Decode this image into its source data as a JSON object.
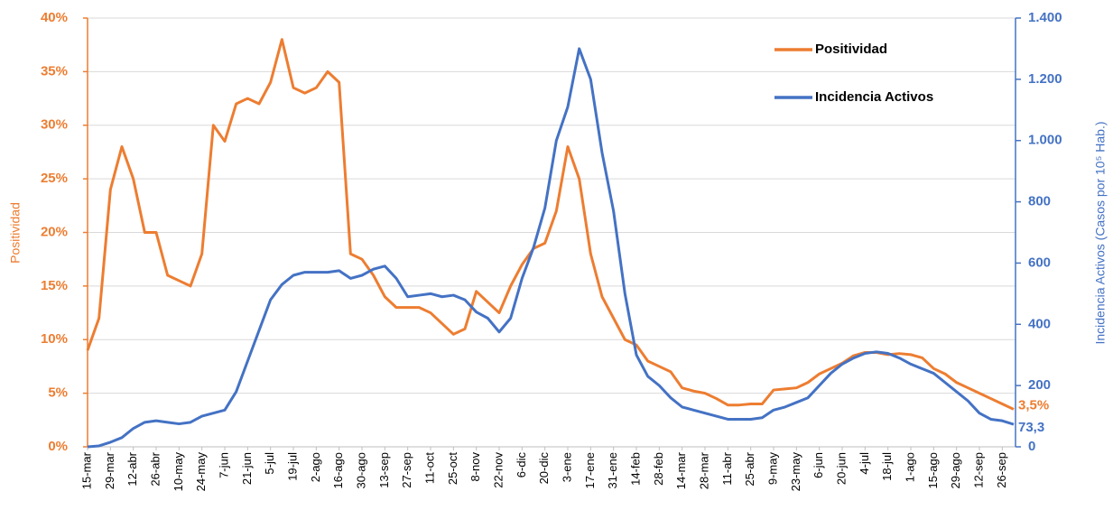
{
  "chart_data": {
    "type": "line",
    "categories": [
      "15-mar",
      null,
      "29-mar",
      null,
      "12-abr",
      null,
      "26-abr",
      null,
      "10-may",
      null,
      "24-may",
      null,
      "7-jun",
      null,
      "21-jun",
      null,
      "5-jul",
      null,
      "19-jul",
      null,
      "2-ago",
      null,
      "16-ago",
      null,
      "30-ago",
      null,
      "13-sep",
      null,
      "27-sep",
      null,
      "11-oct",
      null,
      "25-oct",
      null,
      "8-nov",
      null,
      "22-nov",
      null,
      "6-dic",
      null,
      "20-dic",
      null,
      "3-ene",
      null,
      "17-ene",
      null,
      "31-ene",
      null,
      "14-feb",
      null,
      "28-feb",
      null,
      "14-mar",
      null,
      "28-mar",
      null,
      "11-abr",
      null,
      "25-abr",
      null,
      "9-may",
      null,
      "23-may",
      null,
      "6-jun",
      null,
      "20-jun",
      null,
      "4-jul",
      null,
      "18-jul",
      null,
      "1-ago",
      null,
      "15-ago",
      null,
      "29-ago",
      null,
      "12-sep",
      null,
      "26-sep",
      null
    ],
    "series": [
      {
        "name": "Positividad",
        "color": "#ED7D31",
        "values": [
          9,
          12,
          24,
          28,
          25,
          20,
          20,
          16,
          15.5,
          15,
          18,
          30,
          28.5,
          32,
          32.5,
          32,
          34,
          38,
          33.5,
          33,
          33.5,
          35,
          34,
          18,
          17.5,
          16,
          14,
          13,
          13,
          13,
          12.5,
          11.5,
          10.5,
          11,
          14.5,
          13.5,
          12.5,
          15,
          17,
          18.5,
          19,
          22,
          28,
          25,
          18,
          14,
          12,
          10,
          9.5,
          8,
          7.5,
          7,
          5.5,
          5.2,
          5,
          4.5,
          3.9,
          3.9,
          4,
          4,
          5.3,
          5.4,
          5.5,
          6,
          6.8,
          7.3,
          7.8,
          8.5,
          8.8,
          8.8,
          8.6,
          8.7,
          8.6,
          8.3,
          7.3,
          6.8,
          6,
          5.5,
          5,
          4.5,
          4,
          3.5
        ],
        "value_labels": [
          null,
          null,
          null,
          null,
          null,
          null,
          null,
          null,
          null,
          null,
          null,
          null,
          null,
          null,
          null,
          null,
          null,
          null,
          null,
          null,
          null,
          null,
          null,
          null,
          null,
          null,
          null,
          null,
          null,
          null,
          null,
          null,
          null,
          null,
          null,
          null,
          null,
          null,
          null,
          null,
          null,
          null,
          null,
          null,
          null,
          null,
          null,
          null,
          null,
          null,
          null,
          null,
          null,
          null,
          null,
          null,
          null,
          null,
          null,
          null,
          null,
          null,
          null,
          null,
          null,
          null,
          null,
          null,
          null,
          null,
          null,
          null,
          null,
          null,
          null,
          null,
          null,
          null,
          null,
          null,
          null,
          "3,5%"
        ]
      },
      {
        "name": "Incidencia Activos",
        "color": "#4472C4",
        "axis": "y2",
        "values": [
          0,
          3,
          15,
          30,
          60,
          80,
          85,
          80,
          75,
          80,
          100,
          110,
          120,
          180,
          280,
          380,
          480,
          530,
          560,
          570,
          570,
          570,
          575,
          550,
          560,
          580,
          590,
          550,
          490,
          495,
          500,
          490,
          495,
          480,
          440,
          420,
          375,
          420,
          550,
          650,
          780,
          1000,
          1110,
          1300,
          1200,
          960,
          770,
          500,
          300,
          230,
          200,
          160,
          130,
          120,
          110,
          100,
          90,
          90,
          90,
          95,
          120,
          130,
          145,
          160,
          200,
          240,
          270,
          290,
          305,
          310,
          305,
          290,
          270,
          255,
          240,
          210,
          180,
          150,
          110,
          90,
          85,
          73.3
        ],
        "value_labels": [
          null,
          null,
          null,
          null,
          null,
          null,
          null,
          null,
          null,
          null,
          null,
          null,
          null,
          null,
          null,
          null,
          null,
          null,
          null,
          null,
          null,
          null,
          null,
          null,
          null,
          null,
          null,
          null,
          null,
          null,
          null,
          null,
          null,
          null,
          null,
          null,
          null,
          null,
          null,
          null,
          null,
          null,
          null,
          null,
          null,
          null,
          null,
          null,
          null,
          null,
          null,
          null,
          null,
          null,
          null,
          null,
          null,
          null,
          null,
          null,
          null,
          null,
          null,
          null,
          null,
          null,
          null,
          null,
          null,
          null,
          null,
          null,
          null,
          null,
          null,
          null,
          null,
          null,
          null,
          null,
          null,
          "73,3"
        ]
      }
    ],
    "y_label": "Positividad",
    "y2_label": "Incidencia Activos (Casos por 10⁵ Hab.)",
    "ylim": [
      0,
      40
    ],
    "yticks": [
      {
        "value": 0,
        "label": "0%"
      },
      {
        "value": 5,
        "label": "5%"
      },
      {
        "value": 10,
        "label": "10%"
      },
      {
        "value": 15,
        "label": "15%"
      },
      {
        "value": 20,
        "label": "20%"
      },
      {
        "value": 25,
        "label": "25%"
      },
      {
        "value": 30,
        "label": "30%"
      },
      {
        "value": 35,
        "label": "35%"
      },
      {
        "value": 40,
        "label": "40%"
      }
    ],
    "y2lim": [
      0,
      1400
    ],
    "y2ticks": [
      0,
      200,
      400,
      600,
      800,
      {
        "value": 1000,
        "label": "1.000"
      },
      {
        "value": 1200,
        "label": "1.200"
      },
      {
        "value": 1400,
        "label": "1.400"
      }
    ],
    "grid": true,
    "legend": "upper right"
  }
}
